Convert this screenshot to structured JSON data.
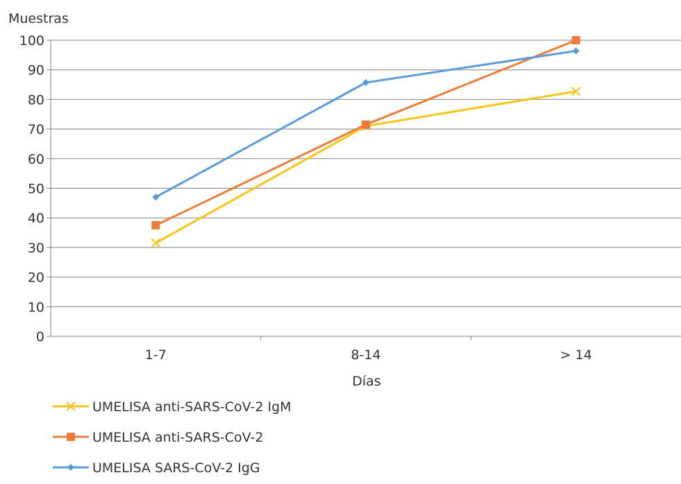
{
  "chart_data": {
    "type": "line",
    "ylabel": "Muestras",
    "xlabel": "Días",
    "categories": [
      "1-7",
      "8-14",
      "> 14"
    ],
    "ylim": [
      0,
      100
    ],
    "yticks": [
      0,
      10,
      20,
      30,
      40,
      50,
      60,
      70,
      80,
      90,
      100
    ],
    "grid": "horizontal",
    "legend_position": "bottom-left",
    "series": [
      {
        "name": "UMELISA anti-SARS-CoV-2 IgM",
        "values": [
          31.5,
          71,
          82.7
        ],
        "color": "#f5c518",
        "marker": "x"
      },
      {
        "name": "UMELISA anti-SARS-CoV-2",
        "values": [
          37.5,
          71.5,
          100
        ],
        "color": "#ec7c3a",
        "marker": "square"
      },
      {
        "name": "UMELISA SARS-CoV-2 IgG",
        "values": [
          47,
          85.7,
          96.4
        ],
        "color": "#5b9bd5",
        "marker": "diamond"
      }
    ]
  }
}
